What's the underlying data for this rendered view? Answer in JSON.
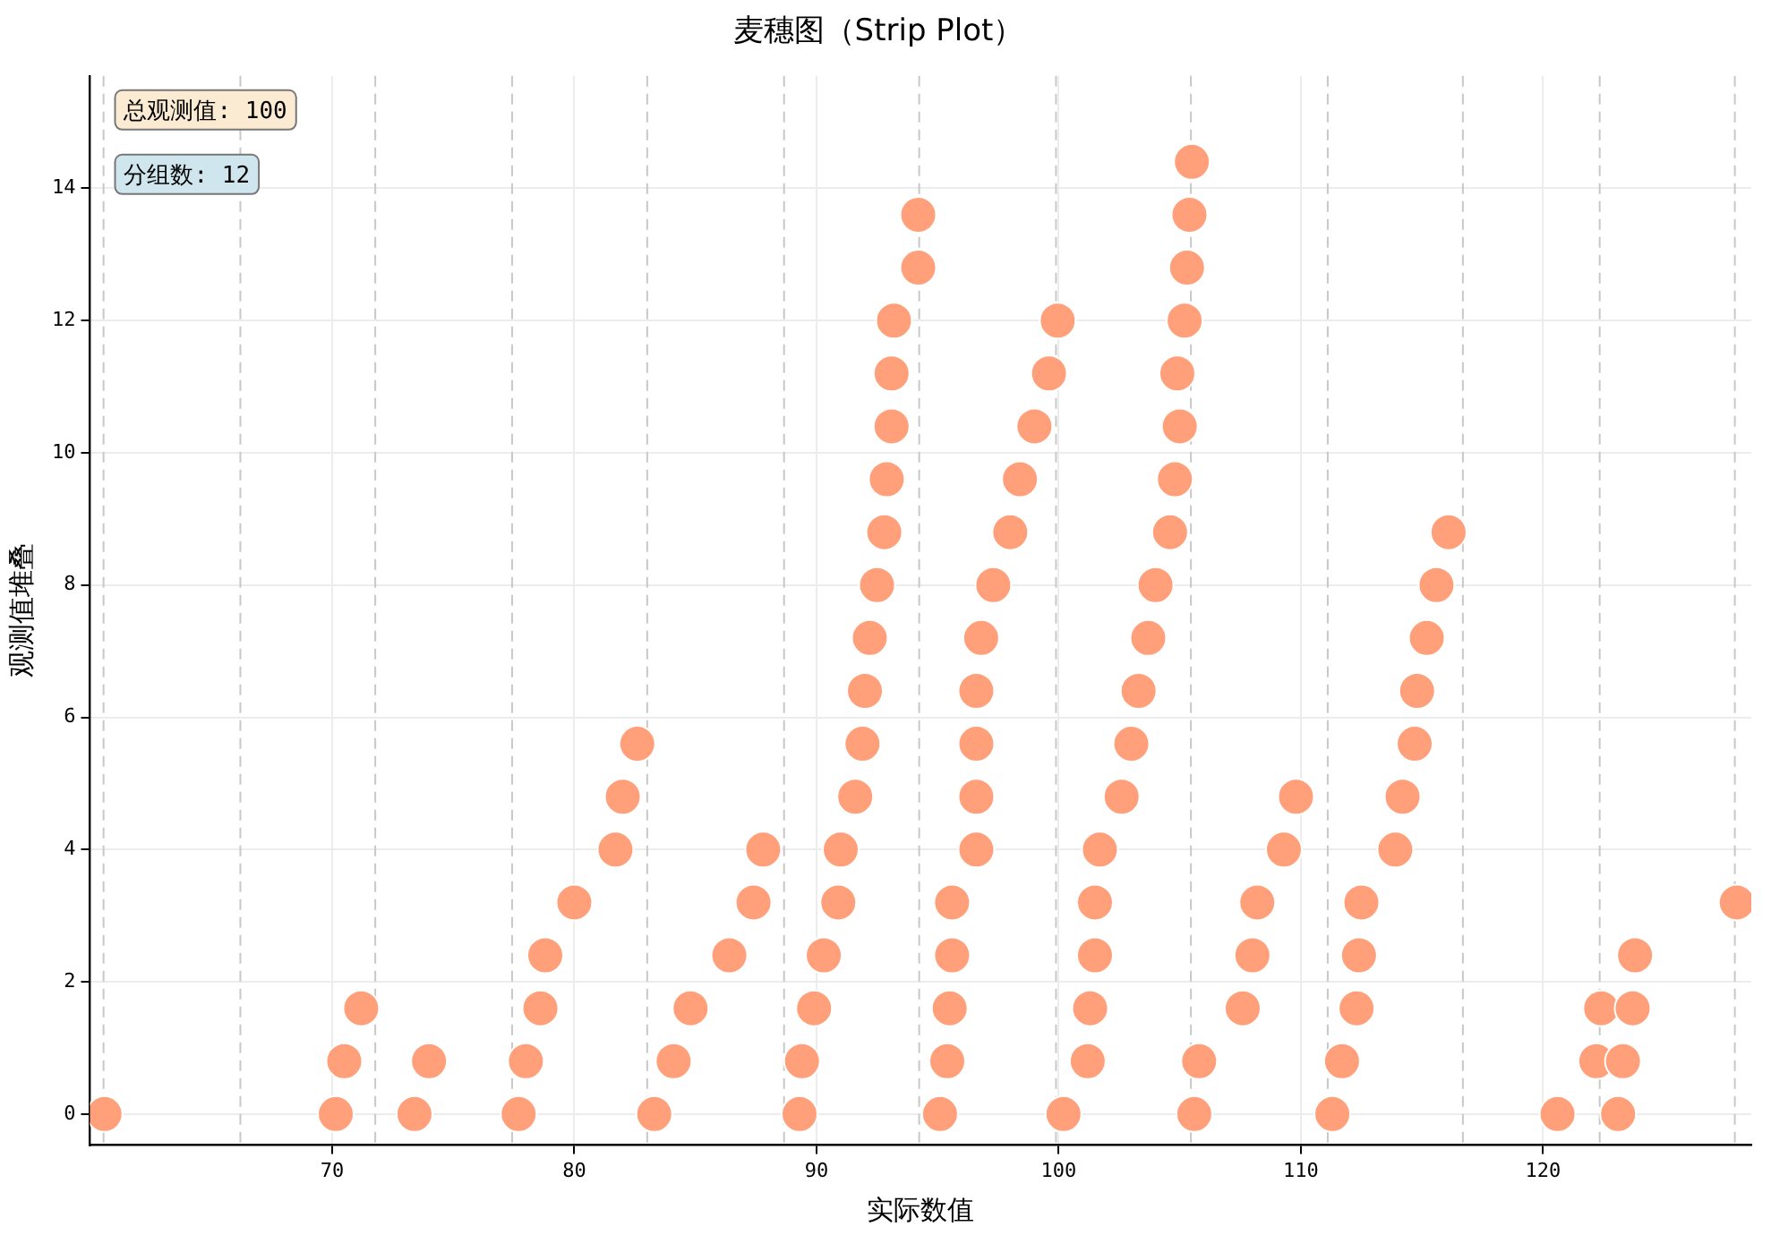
{
  "chart_data": {
    "type": "scatter",
    "title": "麦穗图（Strip Plot）",
    "xlabel": "实际数值",
    "ylabel": "观测值堆叠",
    "annotations": [
      "总观测值: 100",
      "分组数: 12"
    ],
    "x": [
      60.6,
      70.15,
      70.5,
      71.2,
      73.4,
      74.0,
      77.7,
      78.0,
      78.6,
      78.8,
      80.0,
      81.7,
      82.0,
      82.6,
      83.3,
      84.1,
      84.8,
      86.4,
      87.4,
      87.8,
      89.3,
      89.4,
      89.9,
      90.3,
      90.9,
      91.0,
      91.6,
      91.9,
      92.0,
      92.2,
      92.5,
      92.8,
      92.9,
      93.1,
      93.1,
      93.2,
      94.2,
      94.2,
      95.1,
      95.4,
      95.5,
      95.6,
      95.6,
      96.6,
      96.6,
      96.6,
      96.6,
      96.8,
      97.3,
      98.0,
      98.4,
      99.0,
      99.6,
      99.96,
      100.2,
      101.2,
      101.3,
      101.5,
      101.5,
      101.7,
      102.6,
      103.0,
      103.3,
      103.7,
      104.0,
      104.6,
      104.8,
      105.0,
      104.9,
      105.2,
      105.3,
      105.4,
      105.5,
      105.6,
      105.8,
      107.6,
      108.0,
      108.2,
      109.3,
      109.8,
      111.3,
      111.7,
      112.3,
      112.4,
      112.5,
      113.9,
      114.2,
      114.7,
      114.8,
      115.2,
      115.6,
      116.1,
      120.6,
      122.2,
      122.4,
      123.1,
      123.3,
      123.7,
      123.8,
      128.0
    ],
    "values": [
      0,
      0,
      0.8,
      1.6,
      0,
      0.8,
      0,
      0.8,
      1.6,
      2.4,
      3.2,
      4.0,
      4.8,
      5.6,
      0,
      0.8,
      1.6,
      2.4,
      3.2,
      4.0,
      0,
      0.8,
      1.6,
      2.4,
      3.2,
      4.0,
      4.8,
      5.6,
      6.4,
      7.2,
      8.0,
      8.8,
      9.6,
      10.4,
      11.2,
      12.0,
      12.8,
      13.6,
      0,
      0.8,
      1.6,
      2.4,
      3.2,
      4.0,
      4.8,
      5.6,
      6.4,
      7.2,
      8.0,
      8.8,
      9.6,
      10.4,
      11.2,
      12.0,
      0,
      0.8,
      1.6,
      2.4,
      3.2,
      4.0,
      4.8,
      5.6,
      6.4,
      7.2,
      8.0,
      8.8,
      9.6,
      10.4,
      11.2,
      12.0,
      12.8,
      13.6,
      14.4,
      0,
      0.8,
      1.6,
      2.4,
      3.2,
      4.0,
      4.8,
      0,
      0.8,
      1.6,
      2.4,
      3.2,
      4.0,
      4.8,
      5.6,
      6.4,
      7.2,
      8.0,
      8.8,
      0,
      0.8,
      1.6,
      0,
      0.8,
      1.6,
      2.4,
      3.2
    ],
    "color": "#ffa07a",
    "marker": "circle",
    "grid": true,
    "xlim": [
      60,
      128.6
    ],
    "ylim": [
      -0.47,
      15.7
    ],
    "xticks": [
      70,
      80,
      90,
      100,
      110,
      120
    ],
    "yticks": [
      0,
      2,
      4,
      6,
      8,
      10,
      12,
      14
    ],
    "ref_lines": [
      {
        "axis": "x",
        "value": 60.56,
        "color": "#c8c8c8",
        "line_style": "dashed"
      },
      {
        "axis": "x",
        "value": 66.21,
        "color": "#c8c8c8",
        "line_style": "dashed"
      },
      {
        "axis": "x",
        "value": 71.78,
        "color": "#c8c8c8",
        "line_style": "dashed"
      },
      {
        "axis": "x",
        "value": 77.43,
        "color": "#c8c8c8",
        "line_style": "dashed"
      },
      {
        "axis": "x",
        "value": 83.01,
        "color": "#c8c8c8",
        "line_style": "dashed"
      },
      {
        "axis": "x",
        "value": 88.66,
        "color": "#c8c8c8",
        "line_style": "dashed"
      },
      {
        "axis": "x",
        "value": 94.24,
        "color": "#c8c8c8",
        "line_style": "dashed"
      },
      {
        "axis": "x",
        "value": 99.89,
        "color": "#c8c8c8",
        "line_style": "dashed"
      },
      {
        "axis": "x",
        "value": 105.46,
        "color": "#c8c8c8",
        "line_style": "dashed"
      },
      {
        "axis": "x",
        "value": 111.11,
        "color": "#c8c8c8",
        "line_style": "dashed"
      },
      {
        "axis": "x",
        "value": 116.69,
        "color": "#c8c8c8",
        "line_style": "dashed"
      },
      {
        "axis": "x",
        "value": 122.34,
        "color": "#c8c8c8",
        "line_style": "dashed"
      },
      {
        "axis": "x",
        "value": 127.92,
        "color": "#c8c8c8",
        "line_style": "dashed"
      }
    ]
  }
}
